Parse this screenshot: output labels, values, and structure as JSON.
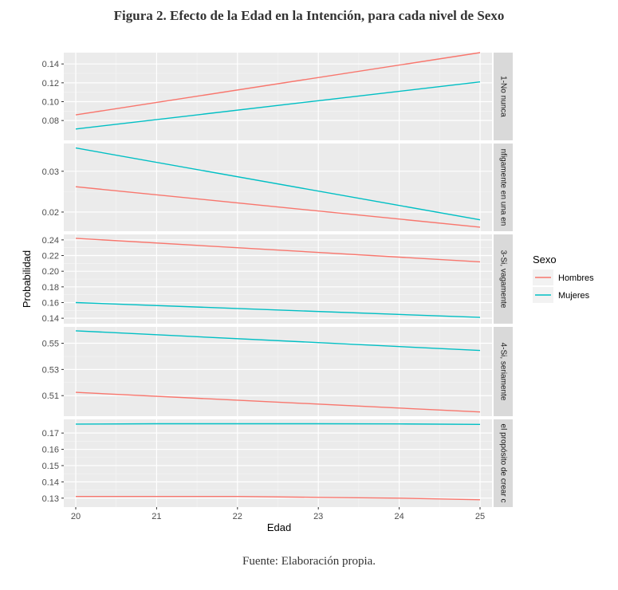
{
  "figure": {
    "title": "Figura 2. Efecto de la Edad en la Intención, para cada nivel de Sexo",
    "source": "Fuente: Elaboración propia."
  },
  "chart_data": {
    "type": "line",
    "xlabel": "Edad",
    "ylabel": "Probabilidad",
    "xlim": [
      20,
      25
    ],
    "x_ticks": [
      20,
      21,
      22,
      23,
      24,
      25
    ],
    "grid": true,
    "legend": {
      "title": "Sexo",
      "placement": "right",
      "entries": [
        {
          "name": "Hombres",
          "color": "#F8766D"
        },
        {
          "name": "Mujeres",
          "color": "#00BFC4"
        }
      ]
    },
    "panels": [
      {
        "strip_label": "1-No nunca",
        "ylim": [
          0.059,
          0.152
        ],
        "y_ticks": [
          0.08,
          0.1,
          0.12,
          0.14
        ],
        "y_tick_labels": [
          "0.08",
          "0.10",
          "0.12",
          "0.14"
        ],
        "series": [
          {
            "name": "Hombres",
            "x": [
              20,
              25
            ],
            "y": [
              0.086,
              0.152
            ]
          },
          {
            "name": "Mujeres",
            "x": [
              20,
              25
            ],
            "y": [
              0.071,
              0.121
            ]
          }
        ]
      },
      {
        "strip_label": "nfigamente en una en",
        "ylim": [
          0.0153,
          0.0368
        ],
        "y_ticks": [
          0.02,
          0.03
        ],
        "y_tick_labels": [
          "0.02",
          "0.03"
        ],
        "series": [
          {
            "name": "Hombres",
            "x": [
              20,
              25
            ],
            "y": [
              0.0262,
              0.0163
            ]
          },
          {
            "name": "Mujeres",
            "x": [
              20,
              25
            ],
            "y": [
              0.0357,
              0.0181
            ]
          }
        ]
      },
      {
        "strip_label": "3-Si, vagamente",
        "ylim": [
          0.133,
          0.247
        ],
        "y_ticks": [
          0.14,
          0.16,
          0.18,
          0.2,
          0.22,
          0.24
        ],
        "y_tick_labels": [
          "0.14",
          "0.16",
          "0.18",
          "0.20",
          "0.22",
          "0.24"
        ],
        "series": [
          {
            "name": "Hombres",
            "x": [
              20,
              25
            ],
            "y": [
              0.242,
              0.212
            ]
          },
          {
            "name": "Mujeres",
            "x": [
              20,
              25
            ],
            "y": [
              0.16,
              0.141
            ]
          }
        ]
      },
      {
        "strip_label": "4-Si, seriamente",
        "ylim": [
          0.4943,
          0.5625
        ],
        "y_ticks": [
          0.51,
          0.53,
          0.55
        ],
        "y_tick_labels": [
          "0.51",
          "0.53",
          "0.55"
        ],
        "series": [
          {
            "name": "Hombres",
            "x": [
              20,
              25
            ],
            "y": [
              0.5125,
              0.4975
            ]
          },
          {
            "name": "Mujeres",
            "x": [
              20,
              25
            ],
            "y": [
              0.5595,
              0.5445
            ]
          }
        ]
      },
      {
        "strip_label": "el propósito de crear c",
        "ylim": [
          0.1245,
          0.1784
        ],
        "y_ticks": [
          0.13,
          0.14,
          0.15,
          0.16,
          0.17
        ],
        "y_tick_labels": [
          "0.13",
          "0.14",
          "0.15",
          "0.16",
          "0.17"
        ],
        "series": [
          {
            "name": "Hombres",
            "x": [
              20,
              21,
              22,
              23,
              24,
              25
            ],
            "y": [
              0.131,
              0.131,
              0.131,
              0.1305,
              0.13,
              0.129
            ]
          },
          {
            "name": "Mujeres",
            "x": [
              20,
              21,
              22,
              23,
              24,
              25
            ],
            "y": [
              0.1755,
              0.1757,
              0.1757,
              0.1757,
              0.1756,
              0.1753
            ]
          }
        ]
      }
    ]
  }
}
